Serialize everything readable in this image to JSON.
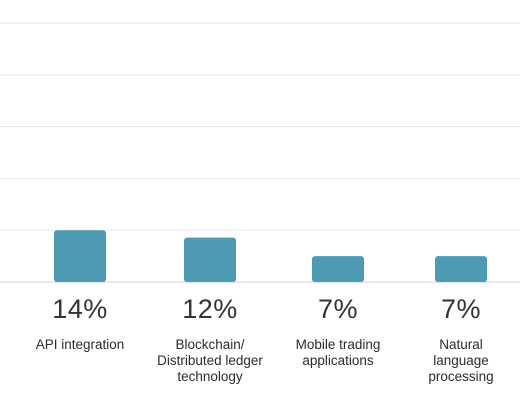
{
  "chart_data": {
    "type": "bar",
    "categories": [
      "API integration",
      "Blockchain/\nDistributed ledger\ntechnology",
      "Mobile trading\napplications",
      "Natural\nlanguage\nprocessing"
    ],
    "values": [
      14,
      12,
      7,
      7
    ],
    "value_labels": [
      "14%",
      "12%",
      "7%",
      "7%"
    ],
    "title": "",
    "xlabel": "",
    "ylabel": "",
    "ylim": [
      0,
      70
    ],
    "grid": true,
    "legend": "none",
    "bar_color": "#4d9ab2"
  }
}
